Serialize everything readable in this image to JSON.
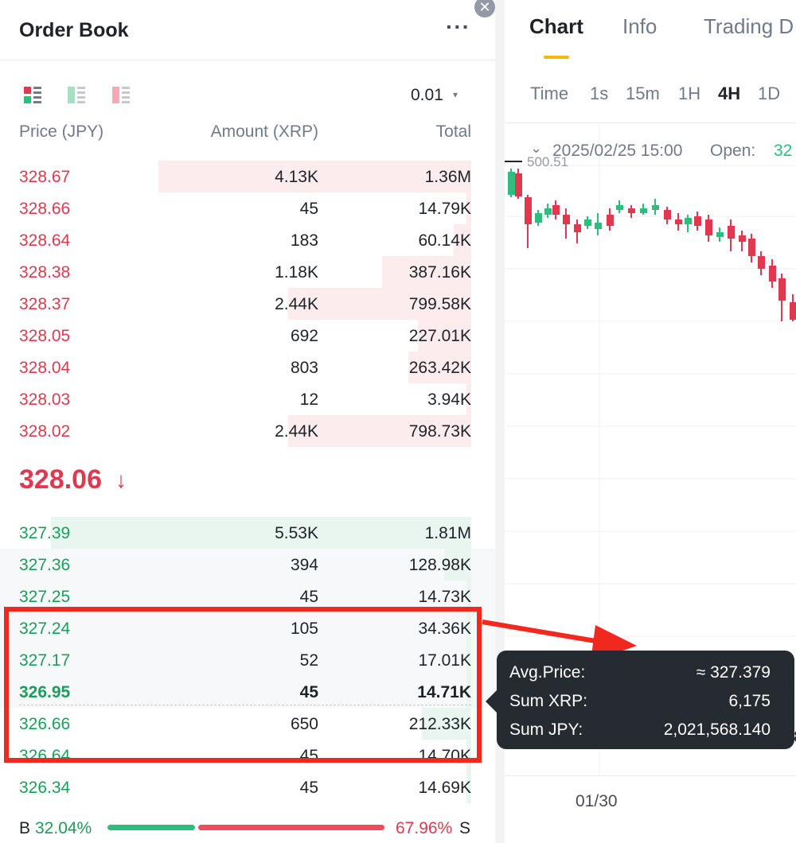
{
  "orderbook": {
    "title": "Order Book",
    "more": "···",
    "close": "✕",
    "tick_size": "0.01",
    "tick_caret": "▾",
    "headers": {
      "price": "Price (JPY)",
      "amount": "Amount (XRP)",
      "total": "Total"
    },
    "asks": [
      {
        "price": "328.67",
        "amount": "4.13K",
        "total": "1.36M",
        "depth": 0.7
      },
      {
        "price": "328.66",
        "amount": "45",
        "total": "14.79K",
        "depth": 0.01
      },
      {
        "price": "328.64",
        "amount": "183",
        "total": "60.14K",
        "depth": 0.04
      },
      {
        "price": "328.38",
        "amount": "1.18K",
        "total": "387.16K",
        "depth": 0.2
      },
      {
        "price": "328.37",
        "amount": "2.44K",
        "total": "799.58K",
        "depth": 0.41
      },
      {
        "price": "328.05",
        "amount": "692",
        "total": "227.01K",
        "depth": 0.12
      },
      {
        "price": "328.04",
        "amount": "803",
        "total": "263.42K",
        "depth": 0.14
      },
      {
        "price": "328.03",
        "amount": "12",
        "total": "3.94K",
        "depth": 0.01
      },
      {
        "price": "328.02",
        "amount": "2.44K",
        "total": "798.73K",
        "depth": 0.41
      }
    ],
    "mid_price": "328.06",
    "mid_arrow": "↓",
    "bids": [
      {
        "price": "327.39",
        "amount": "5.53K",
        "total": "1.81M",
        "depth": 0.94
      },
      {
        "price": "327.36",
        "amount": "394",
        "total": "128.98K",
        "depth": 0.06
      },
      {
        "price": "327.25",
        "amount": "45",
        "total": "14.73K",
        "depth": 0.01
      },
      {
        "price": "327.24",
        "amount": "105",
        "total": "34.36K",
        "depth": 0.01
      },
      {
        "price": "327.17",
        "amount": "52",
        "total": "17.01K",
        "depth": 0.01
      },
      {
        "price": "326.95",
        "amount": "45",
        "total": "14.71K",
        "depth": 0.01
      },
      {
        "price": "326.66",
        "amount": "650",
        "total": "212.33K",
        "depth": 0.11
      },
      {
        "price": "326.64",
        "amount": "45",
        "total": "14.70K",
        "depth": 0.01
      },
      {
        "price": "326.34",
        "amount": "45",
        "total": "14.69K",
        "depth": 0.01
      }
    ],
    "ratio": {
      "buy_label": "B",
      "buy_pct": "32.04%",
      "sell_pct": "67.96%",
      "sell_label": "S",
      "buy_fraction": 0.3204
    }
  },
  "tooltip": {
    "avg_label": "Avg.Price:",
    "avg_value": "≈ 327.379",
    "sumxrp_label": "Sum XRP:",
    "sumxrp_value": "6,175",
    "sumjpy_label": "Sum JPY:",
    "sumjpy_value": "2,021,568.140"
  },
  "chart_panel": {
    "tabs": [
      "Chart",
      "Info",
      "Trading D"
    ],
    "intervals": [
      "Time",
      "1s",
      "15m",
      "1H",
      "4H",
      "1D"
    ],
    "active_interval": "4H",
    "ohlc": {
      "chevron": "⌄",
      "date": "2025/02/25 15:00",
      "open_label": "Open:",
      "open_value": "32"
    },
    "price_line": "500.51",
    "x_label": "01/30",
    "right_clip": "28"
  },
  "colors": {
    "up": "#2ebd7d",
    "down": "#e0384f",
    "accent": "#f0b90b",
    "highlight_box": "#f0281e"
  }
}
